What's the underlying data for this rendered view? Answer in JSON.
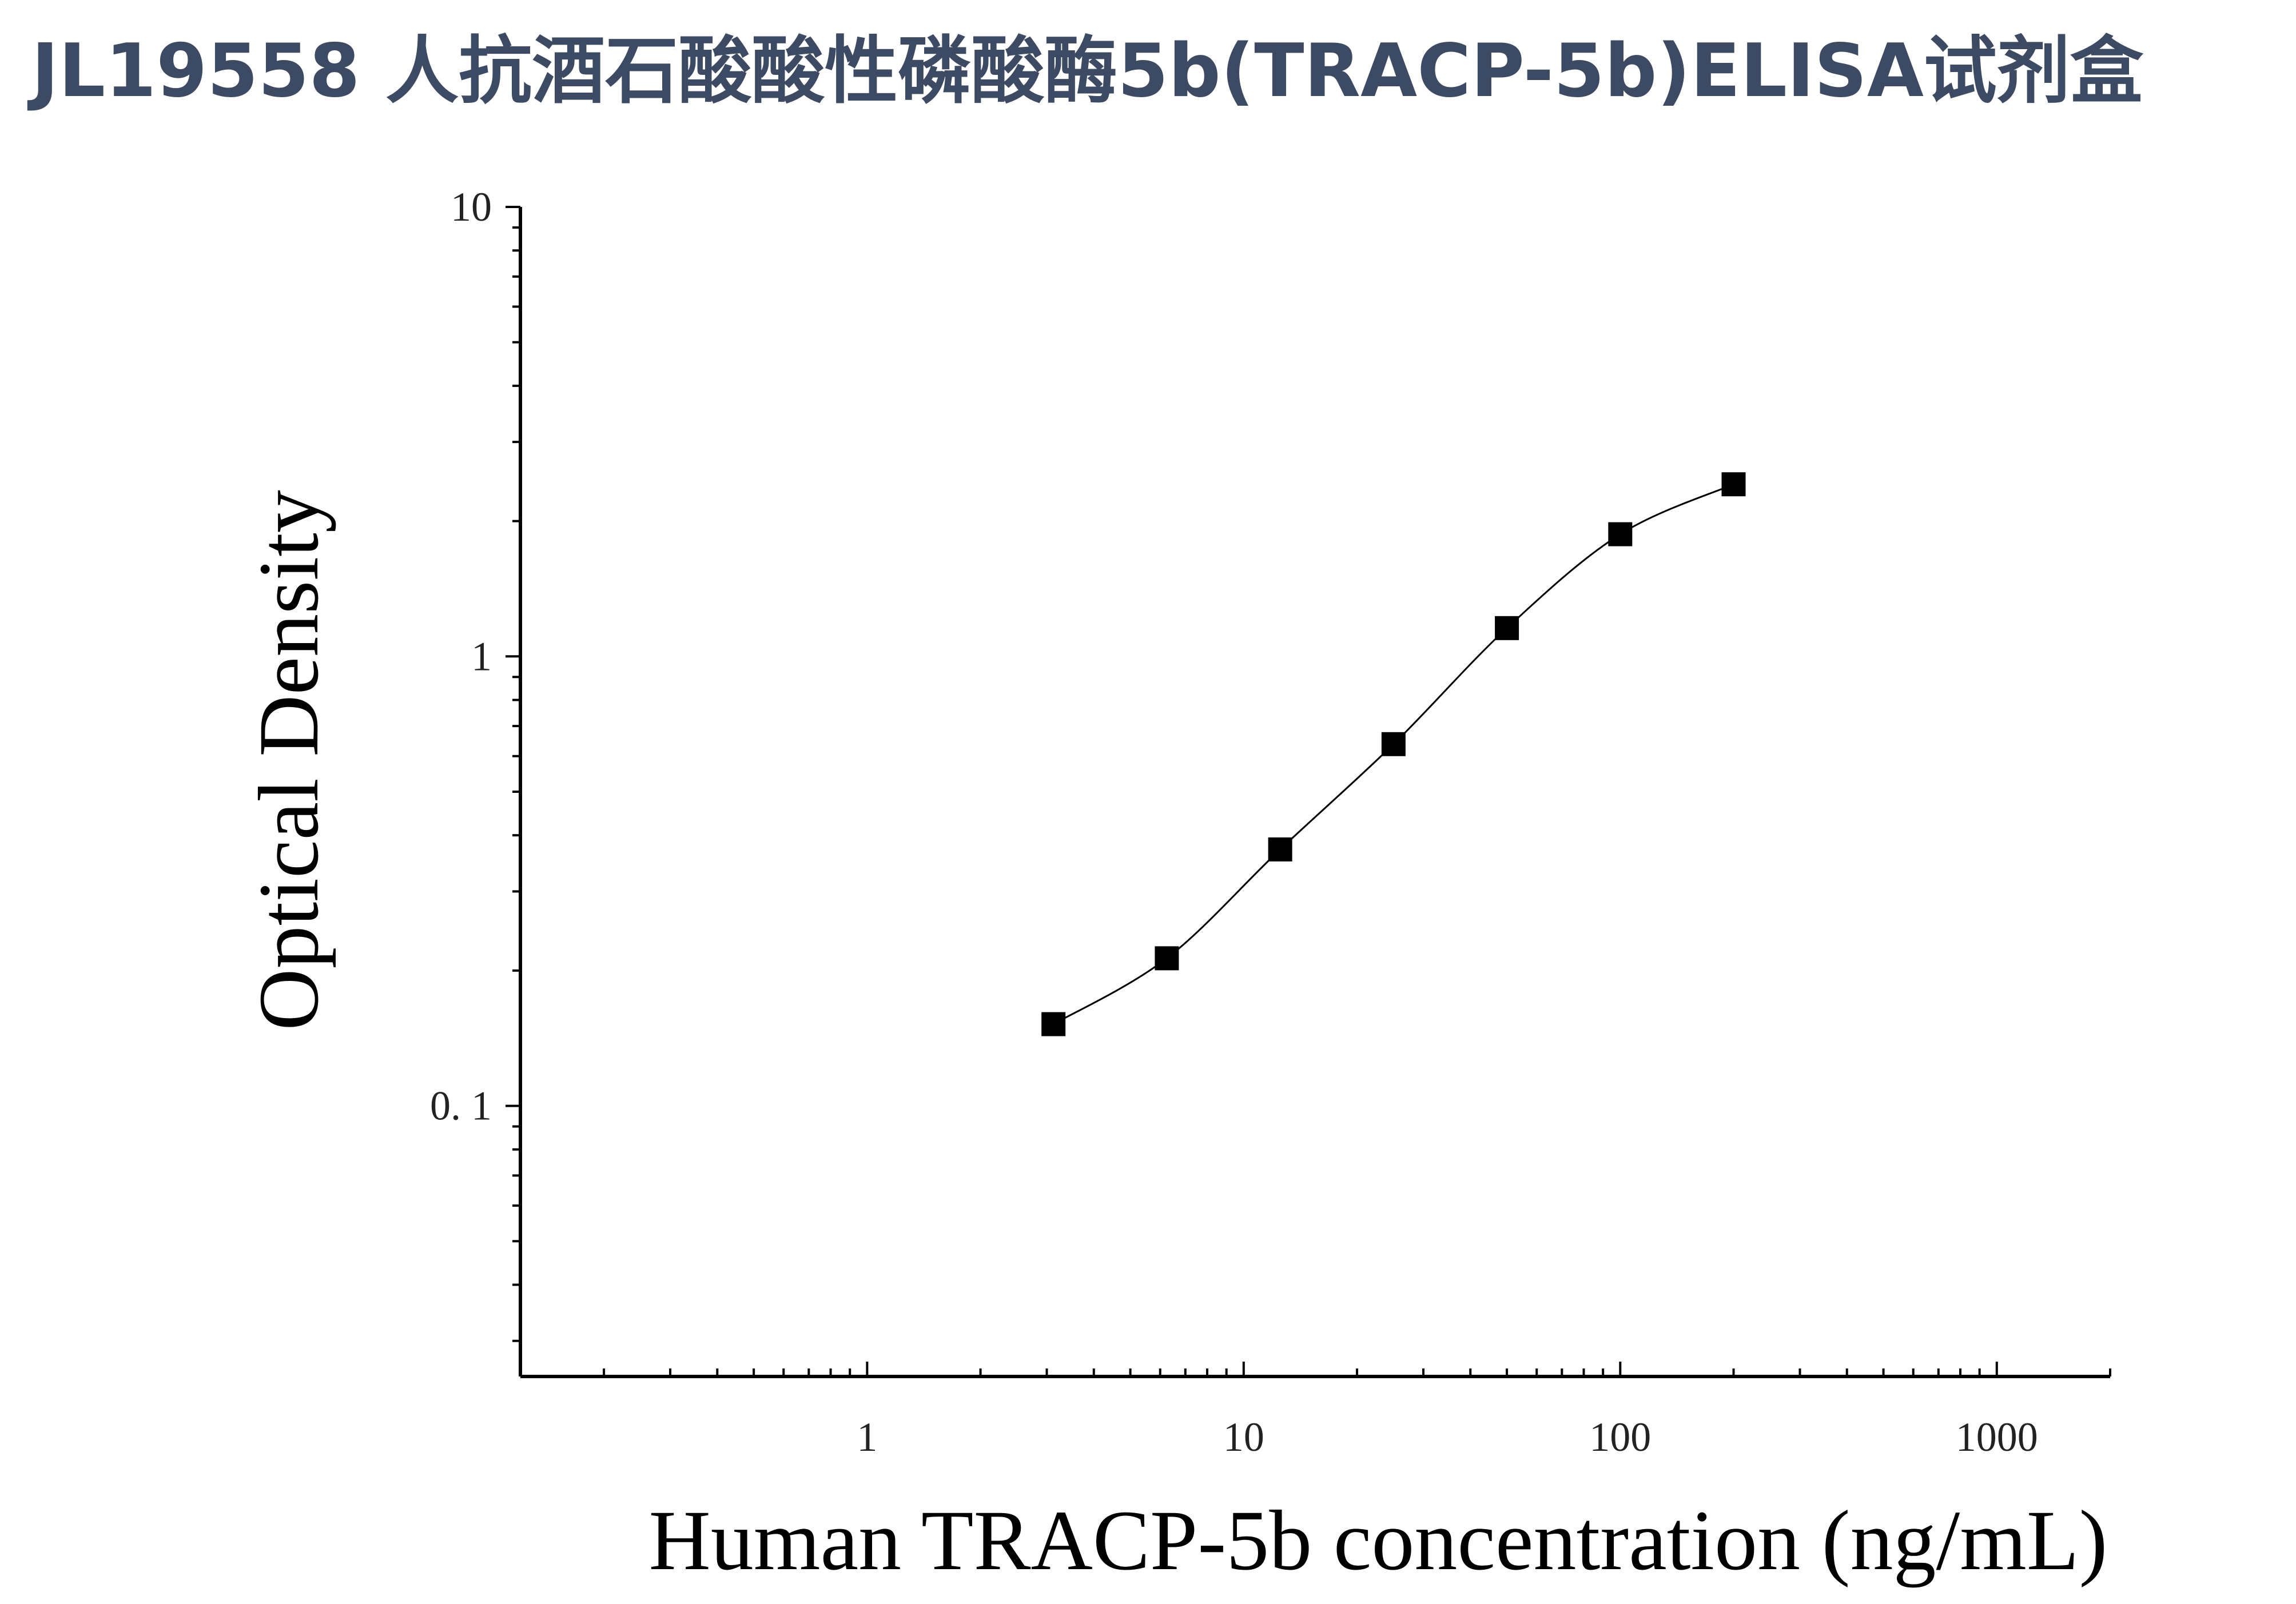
{
  "title": "JL19558 人抗酒石酸酸性磷酸酶5b(TRACP-5b)ELISA试剂盒",
  "chart_data": {
    "type": "scatter",
    "title": "JL19558 人抗酒石酸酸性磷酸酶5b(TRACP-5b)ELISA试剂盒",
    "xlabel": "Human TRACP-5b concentration (ng/mL)",
    "ylabel": "Optical Density",
    "x_scale": "log",
    "y_scale": "log",
    "xlim": [
      0.12,
      2000
    ],
    "ylim": [
      0.025,
      10
    ],
    "x_ticks": [
      {
        "value": 1,
        "label": "1"
      },
      {
        "value": 10,
        "label": "10"
      },
      {
        "value": 100,
        "label": "100"
      },
      {
        "value": 1000,
        "label": "1000"
      }
    ],
    "y_ticks": [
      {
        "value": 0.1,
        "label": "0. 1"
      },
      {
        "value": 1,
        "label": "1"
      },
      {
        "value": 10,
        "label": "10"
      }
    ],
    "grid": false,
    "legend": "none",
    "marker": "square",
    "marker_color": "#000000",
    "line_color": "#000000",
    "series": [
      {
        "x": [
          3.125,
          6.25,
          12.5,
          25,
          50,
          100,
          200
        ],
        "y": [
          0.152,
          0.213,
          0.372,
          0.638,
          1.156,
          1.87,
          2.415
        ]
      }
    ]
  }
}
